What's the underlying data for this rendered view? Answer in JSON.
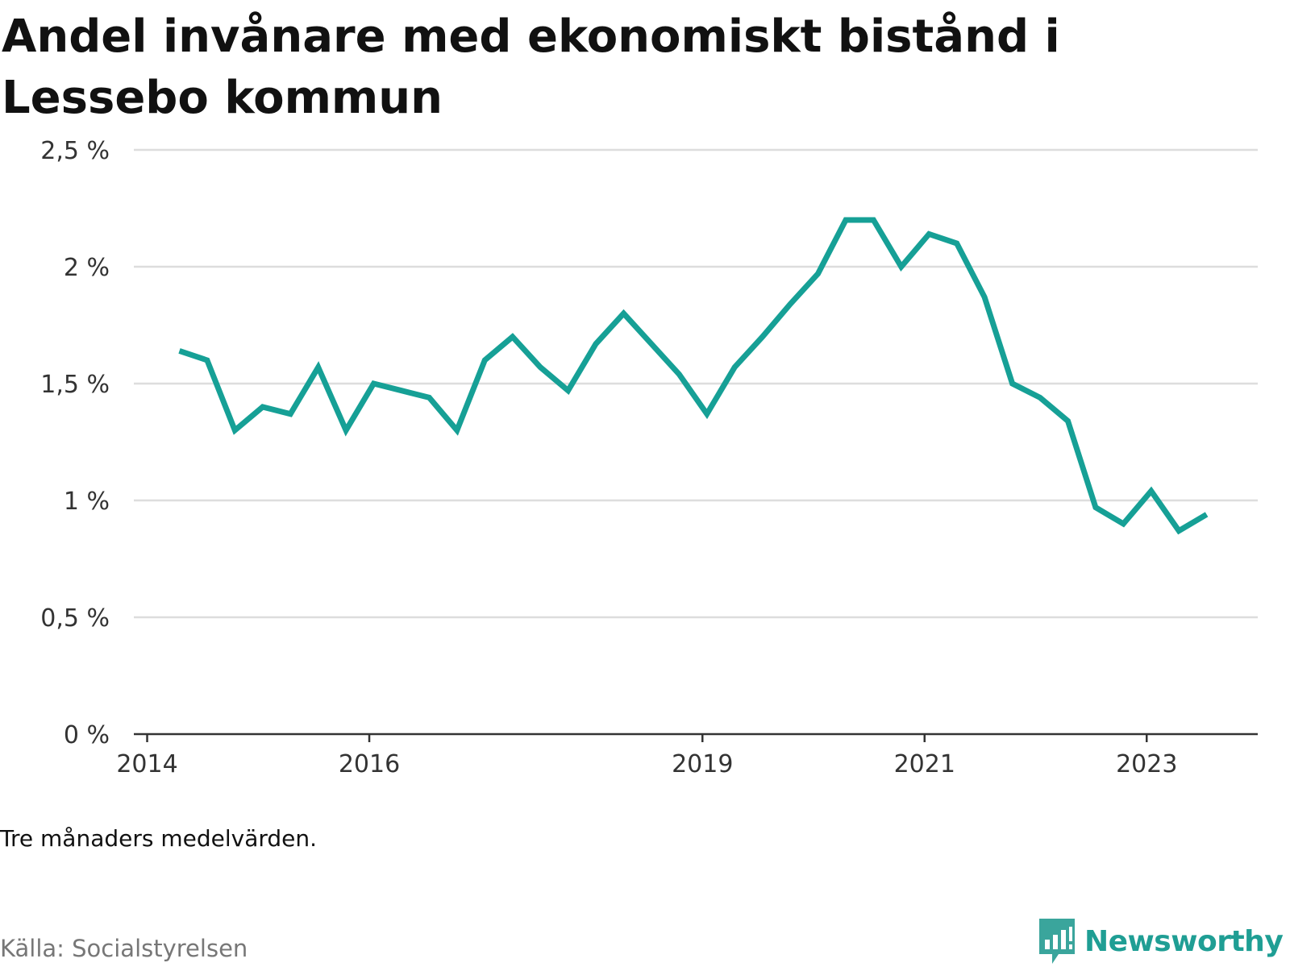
{
  "title": "Andel invånare med ekonomiskt bistånd i Lessebo kommun",
  "note": "Tre månaders medelvärden.",
  "source": "Källa: Socialstyrelsen",
  "brand": {
    "name": "Newsworthy",
    "logo_icon": "bar-chart-speech-bubble-icon",
    "color": "#3aa59c"
  },
  "chart_data": {
    "type": "line",
    "title": "Andel invånare med ekonomiskt bistånd i Lessebo kommun",
    "xlabel": "",
    "ylabel": "",
    "x_ticks": [
      {
        "label": "2014",
        "x": 2014.0
      },
      {
        "label": "2016",
        "x": 2016.0
      },
      {
        "label": "2019",
        "x": 2019.0
      },
      {
        "label": "2021",
        "x": 2021.0
      },
      {
        "label": "2023",
        "x": 2023.0
      }
    ],
    "y_ticks": [
      {
        "label": "0 %",
        "value": 0
      },
      {
        "label": "0,5 %",
        "value": 0.5
      },
      {
        "label": "1 %",
        "value": 1
      },
      {
        "label": "1,5 %",
        "value": 1.5
      },
      {
        "label": "2 %",
        "value": 2
      },
      {
        "label": "2,5 %",
        "value": 2.5
      }
    ],
    "xlim": [
      2013.88,
      2024.0
    ],
    "ylim": [
      0,
      2.5
    ],
    "grid": true,
    "line_color": "#16a096",
    "series": [
      {
        "name": "",
        "x": [
          2014.29,
          2014.54,
          2014.79,
          2015.04,
          2015.29,
          2015.54,
          2015.79,
          2016.04,
          2016.29,
          2016.54,
          2016.79,
          2017.04,
          2017.29,
          2017.54,
          2017.79,
          2018.04,
          2018.29,
          2018.54,
          2018.79,
          2019.04,
          2019.29,
          2019.54,
          2019.79,
          2020.04,
          2020.29,
          2020.54,
          2020.79,
          2021.04,
          2021.29,
          2021.54,
          2021.79,
          2022.04,
          2022.29,
          2022.54,
          2022.79,
          2023.04,
          2023.29,
          2023.54
        ],
        "values": [
          1.64,
          1.6,
          1.3,
          1.4,
          1.37,
          1.57,
          1.3,
          1.5,
          1.47,
          1.44,
          1.3,
          1.6,
          1.7,
          1.57,
          1.47,
          1.67,
          1.8,
          1.67,
          1.54,
          1.37,
          1.57,
          1.7,
          1.84,
          1.97,
          2.2,
          2.2,
          2.0,
          2.14,
          2.1,
          1.87,
          1.5,
          1.44,
          1.34,
          0.97,
          0.9,
          1.04,
          0.87,
          0.94
        ]
      }
    ]
  }
}
